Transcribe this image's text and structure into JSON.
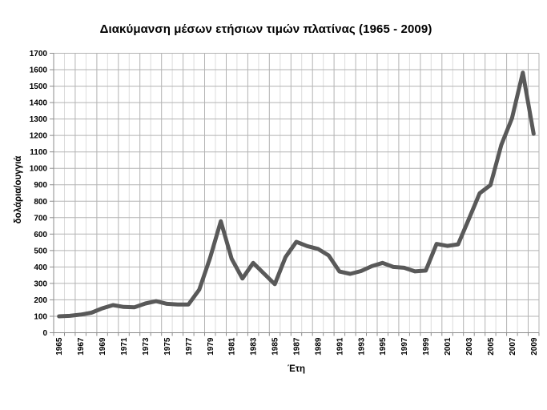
{
  "chart": {
    "title": "Διακύμανση μέσων ετήσιων τιμών πλατίνας (1965 - 2009)",
    "y_axis_title": "δολάρια/ουγγιά",
    "x_axis_title": "Έτη"
  },
  "chart_data": {
    "type": "line",
    "title": "Διακύμανση μέσων ετήσιων τιμών πλατίνας (1965 - 2009)",
    "xlabel": "Έτη",
    "ylabel": "δολάρια/ουγγιά",
    "x": [
      1965,
      1966,
      1967,
      1968,
      1969,
      1970,
      1971,
      1972,
      1973,
      1974,
      1975,
      1976,
      1977,
      1978,
      1979,
      1980,
      1981,
      1982,
      1983,
      1984,
      1985,
      1986,
      1987,
      1988,
      1989,
      1990,
      1991,
      1992,
      1993,
      1994,
      1995,
      1996,
      1997,
      1998,
      1999,
      2000,
      2001,
      2002,
      2003,
      2004,
      2005,
      2006,
      2007,
      2008,
      2009
    ],
    "values": [
      100,
      103,
      110,
      122,
      148,
      168,
      157,
      155,
      178,
      192,
      176,
      172,
      172,
      262,
      455,
      678,
      450,
      330,
      425,
      360,
      295,
      460,
      553,
      527,
      510,
      470,
      372,
      358,
      375,
      405,
      425,
      400,
      395,
      373,
      378,
      540,
      528,
      538,
      692,
      848,
      898,
      1142,
      1305,
      1582,
      1210
    ],
    "ylim": [
      0,
      1700
    ],
    "y_tick_step": 100,
    "x_tick_labels": [
      "1965",
      "1967",
      "1969",
      "1971",
      "1973",
      "1975",
      "1977",
      "1979",
      "1981",
      "1983",
      "1985",
      "1987",
      "1989",
      "1991",
      "1993",
      "1995",
      "1997",
      "1999",
      "2001",
      "2003",
      "2005",
      "2007",
      "2009"
    ],
    "tick_label_rotation": "vertical-bottom-to-top",
    "grid": "horizontal major every 100; vertical minor every year, major every 2 years",
    "legend": "none",
    "colors": {
      "line": "#595959",
      "major_grid": "#b3b3b3",
      "minor_grid": "#dcdcdc",
      "axis": "#8c8c8c",
      "text": "#000000",
      "background": "#ffffff"
    }
  }
}
